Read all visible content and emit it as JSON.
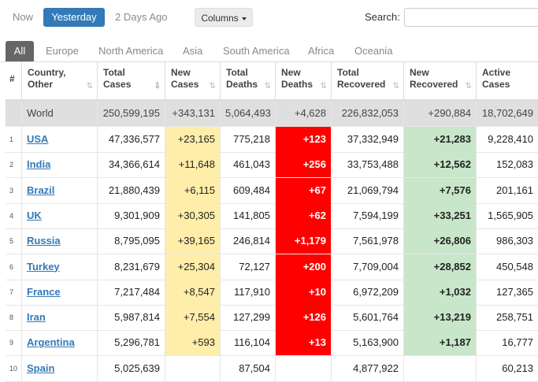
{
  "top_bar": {
    "now": "Now",
    "yesterday": "Yesterday",
    "two_days_ago": "2 Days Ago",
    "columns_label": "Columns",
    "search_label": "Search:",
    "search_value": ""
  },
  "tabs": [
    "All",
    "Europe",
    "North America",
    "Asia",
    "South America",
    "Africa",
    "Oceania"
  ],
  "headers": [
    {
      "label_1": "#",
      "label_2": ""
    },
    {
      "label_1": "Country,",
      "label_2": "Other"
    },
    {
      "label_1": "Total",
      "label_2": "Cases"
    },
    {
      "label_1": "New",
      "label_2": "Cases"
    },
    {
      "label_1": "Total",
      "label_2": "Deaths"
    },
    {
      "label_1": "New",
      "label_2": "Deaths"
    },
    {
      "label_1": "Total",
      "label_2": "Recovered"
    },
    {
      "label_1": "New",
      "label_2": "Recovered"
    },
    {
      "label_1": "Active",
      "label_2": "Cases"
    }
  ],
  "world": {
    "name": "World",
    "total_cases": "250,599,195",
    "new_cases": "+343,131",
    "total_deaths": "5,064,493",
    "new_deaths": "+4,628",
    "total_recovered": "226,832,053",
    "new_recovered": "+290,884",
    "active_cases": "18,702,649"
  },
  "rows": [
    {
      "idx": "1",
      "country": "USA",
      "total_cases": "47,336,577",
      "new_cases": "+23,165",
      "total_deaths": "775,218",
      "new_deaths": "+123",
      "total_recovered": "37,332,949",
      "new_recovered": "+21,283",
      "active_cases": "9,228,410"
    },
    {
      "idx": "2",
      "country": "India",
      "total_cases": "34,366,614",
      "new_cases": "+11,648",
      "total_deaths": "461,043",
      "new_deaths": "+256",
      "total_recovered": "33,753,488",
      "new_recovered": "+12,562",
      "active_cases": "152,083"
    },
    {
      "idx": "3",
      "country": "Brazil",
      "total_cases": "21,880,439",
      "new_cases": "+6,115",
      "total_deaths": "609,484",
      "new_deaths": "+67",
      "total_recovered": "21,069,794",
      "new_recovered": "+7,576",
      "active_cases": "201,161"
    },
    {
      "idx": "4",
      "country": "UK",
      "total_cases": "9,301,909",
      "new_cases": "+30,305",
      "total_deaths": "141,805",
      "new_deaths": "+62",
      "total_recovered": "7,594,199",
      "new_recovered": "+33,251",
      "active_cases": "1,565,905"
    },
    {
      "idx": "5",
      "country": "Russia",
      "total_cases": "8,795,095",
      "new_cases": "+39,165",
      "total_deaths": "246,814",
      "new_deaths": "+1,179",
      "total_recovered": "7,561,978",
      "new_recovered": "+26,806",
      "active_cases": "986,303"
    },
    {
      "idx": "6",
      "country": "Turkey",
      "total_cases": "8,231,679",
      "new_cases": "+25,304",
      "total_deaths": "72,127",
      "new_deaths": "+200",
      "total_recovered": "7,709,004",
      "new_recovered": "+28,852",
      "active_cases": "450,548"
    },
    {
      "idx": "7",
      "country": "France",
      "total_cases": "7,217,484",
      "new_cases": "+8,547",
      "total_deaths": "117,910",
      "new_deaths": "+10",
      "total_recovered": "6,972,209",
      "new_recovered": "+1,032",
      "active_cases": "127,365"
    },
    {
      "idx": "8",
      "country": "Iran",
      "total_cases": "5,987,814",
      "new_cases": "+7,554",
      "total_deaths": "127,299",
      "new_deaths": "+126",
      "total_recovered": "5,601,764",
      "new_recovered": "+13,219",
      "active_cases": "258,751"
    },
    {
      "idx": "9",
      "country": "Argentina",
      "total_cases": "5,296,781",
      "new_cases": "+593",
      "total_deaths": "116,104",
      "new_deaths": "+13",
      "total_recovered": "5,163,900",
      "new_recovered": "+1,187",
      "active_cases": "16,777"
    },
    {
      "idx": "10",
      "country": "Spain",
      "total_cases": "5,025,639",
      "new_cases": "",
      "total_deaths": "87,504",
      "new_deaths": "",
      "total_recovered": "4,877,922",
      "new_recovered": "",
      "active_cases": "60,213"
    }
  ],
  "colors": {
    "new_cases_bg": "#ffeea9",
    "new_deaths_bg": "#ff0000",
    "new_recovered_bg": "#c8e6c9",
    "world_row_bg": "#dfdfdf",
    "accent": "#337ab7"
  }
}
